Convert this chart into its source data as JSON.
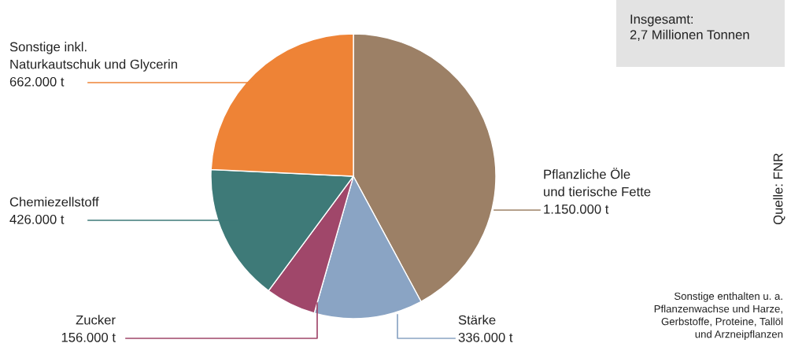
{
  "chart_data": {
    "type": "pie",
    "categories": [
      "Pflanzliche Öle\nund tierische Fette",
      "Stärke",
      "Zucker",
      "Chemiezellstoff",
      "Sonstige inkl.\nNaturkautschuk und Glycerin"
    ],
    "values": [
      1150000,
      336000,
      156000,
      426000,
      662000
    ],
    "value_labels": [
      "1.150.000 t",
      "336.000 t",
      "156.000 t",
      "426.000 t",
      "662.000 t"
    ],
    "colors": [
      "#9c8066",
      "#8aa4c4",
      "#a0476a",
      "#3e7a78",
      "#ee8336"
    ],
    "annotations": [
      "Insgesamt:\n2,7 Millionen Tonnen",
      "Quelle: FNR",
      "Sonstige enthalten u. a.\nPflanzenwachse und Harze,\nGerbstoffe, Proteine, Tallöl\nund Arzneipflanzen"
    ]
  }
}
